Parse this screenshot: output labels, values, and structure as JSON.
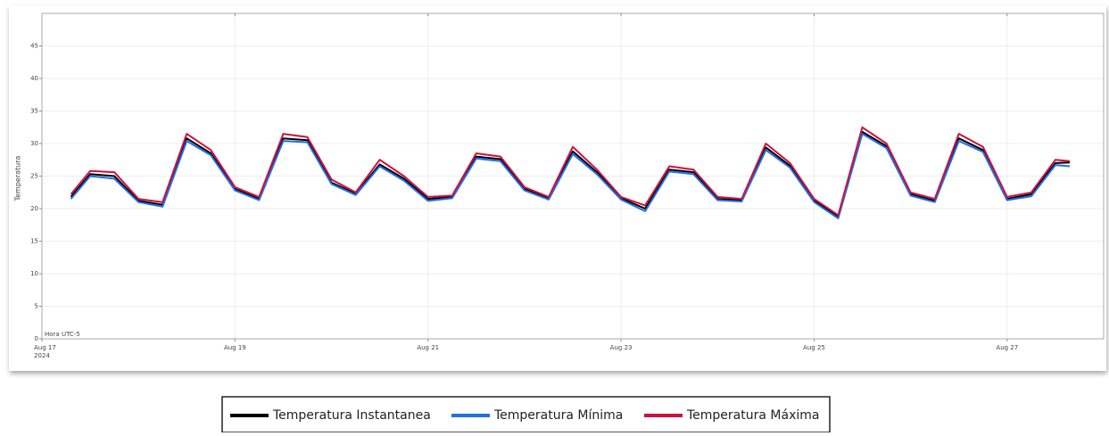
{
  "chart_data": {
    "type": "line",
    "y_label": "Temperatura",
    "annotation": "Hora UTC-5",
    "x_year_label": "2024",
    "x": [
      17.3,
      17.5,
      17.75,
      18.0,
      18.25,
      18.5,
      18.75,
      19.0,
      19.25,
      19.5,
      19.75,
      20.0,
      20.25,
      20.5,
      20.75,
      21.0,
      21.25,
      21.5,
      21.75,
      22.0,
      22.25,
      22.5,
      22.75,
      23.0,
      23.25,
      23.5,
      23.75,
      24.0,
      24.25,
      24.5,
      24.75,
      25.0,
      25.25,
      25.5,
      25.75,
      26.0,
      26.25,
      26.5,
      26.75,
      27.0,
      27.25,
      27.5,
      27.65
    ],
    "series": [
      {
        "name": "Temperatura Instantanea",
        "color": "#000000",
        "values": [
          21.8,
          25.3,
          25,
          21.2,
          20.6,
          30.8,
          28.5,
          23,
          21.5,
          30.8,
          30.5,
          24,
          22.3,
          26.8,
          24.6,
          21.5,
          21.8,
          28,
          27.6,
          23,
          21.6,
          28.8,
          25.6,
          21.6,
          20,
          26,
          25.6,
          21.5,
          21.3,
          29.4,
          26.6,
          21.2,
          18.8,
          31.8,
          29.6,
          22.2,
          21.2,
          30.8,
          29,
          21.5,
          22.2,
          27,
          27.1
        ]
      },
      {
        "name": "Temperatura Mínima",
        "color": "#1f6fe8",
        "values": [
          21.5,
          25,
          24.6,
          21,
          20.3,
          30.4,
          28.2,
          22.8,
          21.3,
          30.4,
          30.2,
          23.8,
          22.1,
          26.5,
          24.3,
          21.2,
          21.6,
          27.7,
          27.3,
          22.8,
          21.4,
          28.4,
          25.3,
          21.4,
          19.6,
          25.7,
          25.3,
          21.3,
          21.1,
          29,
          26.3,
          21,
          18.5,
          31.5,
          29.3,
          22,
          21,
          30.4,
          28.7,
          21.3,
          21.9,
          26.7,
          26.5
        ]
      },
      {
        "name": "Temperatura Máxima",
        "color": "#d0103a",
        "values": [
          22.2,
          25.8,
          25.6,
          21.5,
          21,
          31.5,
          29,
          23.3,
          21.8,
          31.5,
          31,
          24.5,
          22.5,
          27.5,
          25,
          21.8,
          22,
          28.5,
          28,
          23.3,
          21.8,
          29.5,
          26,
          21.8,
          20.5,
          26.5,
          26,
          21.8,
          21.5,
          30,
          27,
          21.5,
          19,
          32.5,
          30,
          22.5,
          21.5,
          31.5,
          29.5,
          21.8,
          22.5,
          27.5,
          27.3
        ]
      }
    ],
    "xlim": [
      17,
      28
    ],
    "xticks": [
      {
        "value": 17,
        "label": "Aug 17"
      },
      {
        "value": 19,
        "label": "Aug 19"
      },
      {
        "value": 21,
        "label": "Aug 21"
      },
      {
        "value": 23,
        "label": "Aug 23"
      },
      {
        "value": 25,
        "label": "Aug 25"
      },
      {
        "value": 27,
        "label": "Aug 27"
      }
    ],
    "ylim": [
      0,
      50
    ],
    "yticks": [
      0,
      5,
      10,
      15,
      20,
      25,
      30,
      35,
      40,
      45
    ],
    "grid": true
  }
}
